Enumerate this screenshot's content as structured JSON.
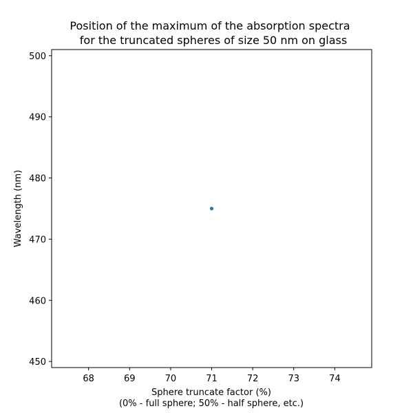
{
  "chart_data": {
    "type": "scatter",
    "title_lines": [
      "Position of the maximum of the absorption spectra",
      "for the truncated spheres of size 50 nm on glass"
    ],
    "xlabel_lines": [
      "Sphere truncate factor (%)",
      "(0% - full sphere; 50% - half sphere, etc.)"
    ],
    "ylabel": "Wavelength (nm)",
    "xlim": [
      67.1,
      74.9
    ],
    "ylim": [
      449,
      501
    ],
    "xticks": [
      68,
      69,
      70,
      71,
      72,
      73,
      74
    ],
    "yticks": [
      450,
      460,
      470,
      480,
      490,
      500
    ],
    "grid": false,
    "series": [
      {
        "color": "#1f77b4",
        "x": [
          71
        ],
        "y": [
          475
        ]
      }
    ]
  }
}
